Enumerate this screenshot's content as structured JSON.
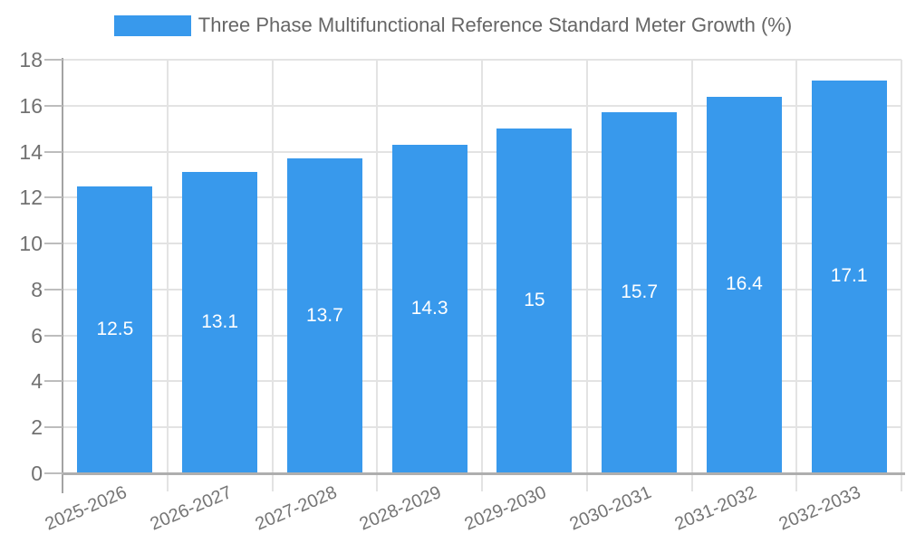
{
  "chart_data": {
    "type": "bar",
    "title": "Three Phase Multifunctional Reference Standard Meter Growth (%)",
    "categories": [
      "2025-2026",
      "2026-2027",
      "2027-2028",
      "2028-2029",
      "2029-2030",
      "2030-2031",
      "2031-2032",
      "2032-2033"
    ],
    "values": [
      12.5,
      13.1,
      13.7,
      14.3,
      15,
      15.7,
      16.4,
      17.1
    ],
    "value_labels": [
      "12.5",
      "13.1",
      "13.7",
      "14.3",
      "15",
      "15.7",
      "16.4",
      "17.1"
    ],
    "xlabel": "",
    "ylabel": "",
    "ylim": [
      0,
      18
    ],
    "ytick_step": 2,
    "yticks": [
      0,
      2,
      4,
      6,
      8,
      10,
      12,
      14,
      16,
      18
    ],
    "grid": true,
    "legend_position": "top-center",
    "bar_label_position": "inside-center",
    "x_label_rotation_deg": -23,
    "colors": {
      "bar": "#3899ec",
      "bar_label": "#ffffff",
      "y_axis_text": "#717171",
      "x_axis_text": "#757575",
      "legend_text": "#666666",
      "gridline": "#e3e3e3",
      "axis_line": "#aeaeae",
      "background": "#ffffff"
    }
  }
}
